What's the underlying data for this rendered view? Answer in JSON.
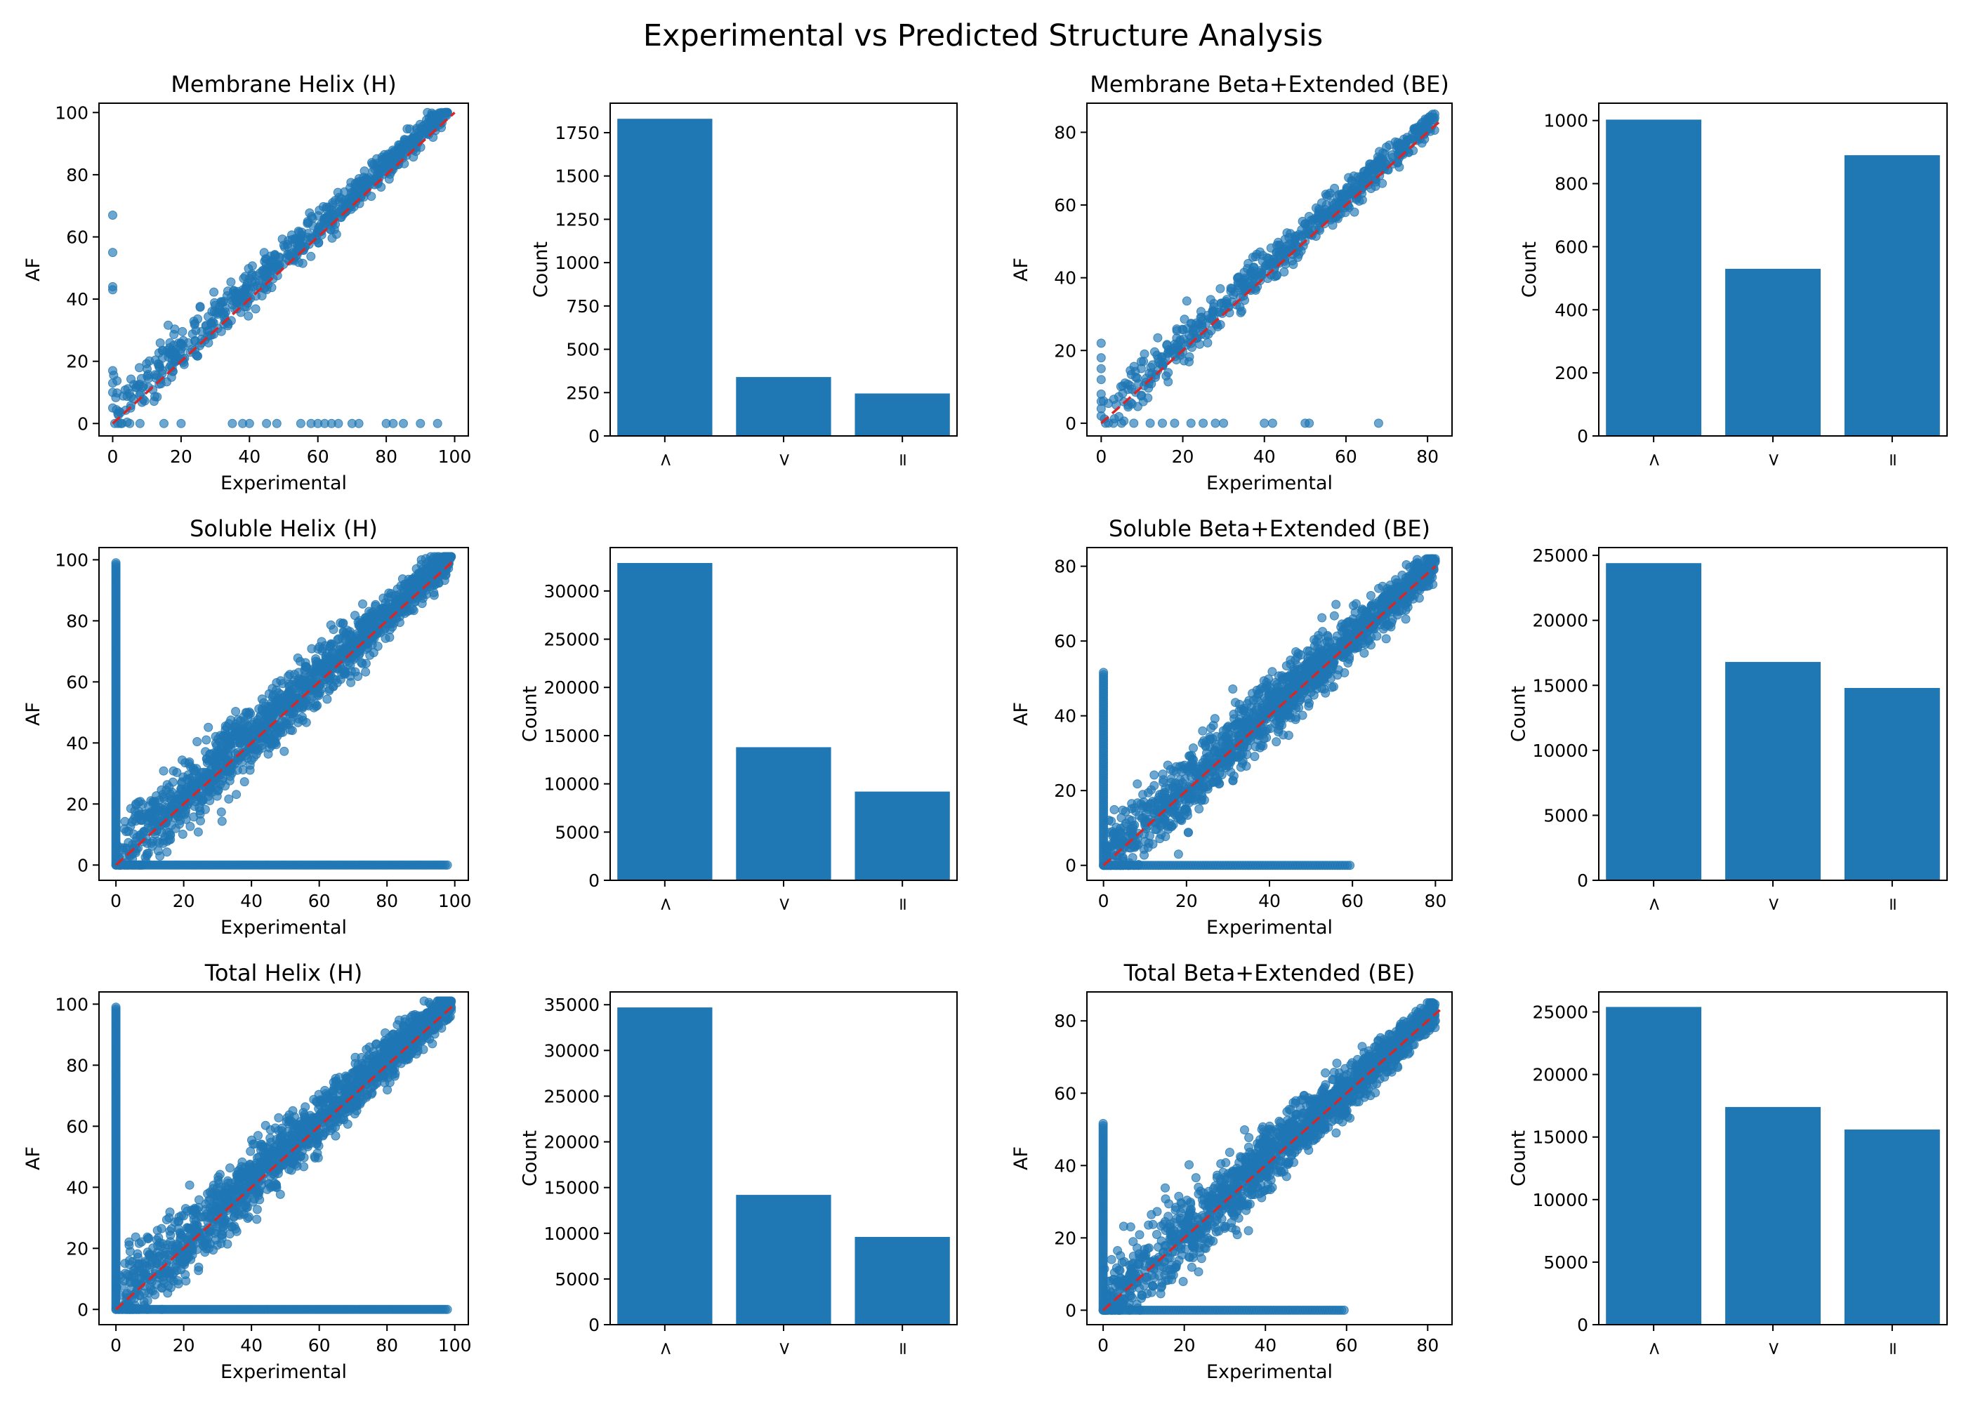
{
  "figure": {
    "title": "Experimental vs Predicted Structure Analysis"
  },
  "colors": {
    "points": "#1f77b4",
    "bars": "#1f77b4",
    "diagonal": "#d62728",
    "axes": "#000000"
  },
  "chart_data": [
    {
      "id": "membrane-helix-scatter",
      "type": "scatter",
      "title": "Membrane Helix (H)",
      "xlabel": "Experimental",
      "ylabel": "AF",
      "xlim": [
        -4,
        104
      ],
      "ylim": [
        -4,
        103
      ],
      "xticks": [
        0,
        20,
        40,
        60,
        80,
        100
      ],
      "yticks": [
        0,
        20,
        40,
        60,
        80,
        100
      ],
      "diagonal": [
        0,
        100
      ],
      "distribution": {
        "xmax": 98,
        "spread": 4.5,
        "bias": 3,
        "n": 700,
        "zero_x": [
          5,
          8,
          15,
          20,
          35,
          38,
          40,
          45,
          48,
          55,
          58,
          60,
          62,
          64,
          66,
          70,
          72,
          80,
          82,
          85,
          90,
          95
        ],
        "zero_y": [
          5,
          10,
          13,
          17,
          43,
          44,
          55,
          67
        ]
      }
    },
    {
      "id": "membrane-helix-bar",
      "type": "bar",
      "categories": [
        ">",
        "<",
        "="
      ],
      "values": [
        1830,
        340,
        245
      ],
      "ylabel": "Count",
      "ylim": [
        0,
        1920
      ],
      "yticks": [
        0,
        250,
        500,
        750,
        1000,
        1250,
        1500,
        1750
      ]
    },
    {
      "id": "membrane-be-scatter",
      "type": "scatter",
      "title": "Membrane Beta+Extended (BE)",
      "xlabel": "Experimental",
      "ylabel": "AF",
      "xlim": [
        -3.5,
        86
      ],
      "ylim": [
        -3.5,
        88
      ],
      "xticks": [
        0,
        20,
        40,
        60,
        80
      ],
      "yticks": [
        0,
        20,
        40,
        60,
        80
      ],
      "diagonal": [
        0,
        83
      ],
      "distribution": {
        "xmax": 82,
        "spread": 4,
        "bias": 2,
        "n": 600,
        "zero_x": [
          3,
          5,
          8,
          12,
          15,
          18,
          22,
          25,
          28,
          30,
          40,
          42,
          50,
          51,
          68
        ],
        "zero_y": [
          2,
          4,
          6,
          8,
          12,
          15,
          18,
          22
        ]
      }
    },
    {
      "id": "membrane-be-bar",
      "type": "bar",
      "categories": [
        ">",
        "<",
        "="
      ],
      "values": [
        1003,
        530,
        890
      ],
      "ylabel": "Count",
      "ylim": [
        0,
        1055
      ],
      "yticks": [
        0,
        200,
        400,
        600,
        800,
        1000
      ]
    },
    {
      "id": "soluble-helix-scatter",
      "type": "scatter",
      "title": "Soluble Helix (H)",
      "xlabel": "Experimental",
      "ylabel": "AF",
      "xlim": [
        -5,
        104
      ],
      "ylim": [
        -5,
        104
      ],
      "xticks": [
        0,
        20,
        40,
        60,
        80,
        100
      ],
      "yticks": [
        0,
        20,
        40,
        60,
        80,
        100
      ],
      "diagonal": [
        0,
        100
      ],
      "distribution": {
        "xmax": 99,
        "spread": 7,
        "bias": 2,
        "n": 1500,
        "zero_x": "dense:0-98",
        "zero_y": "dense:0-99"
      }
    },
    {
      "id": "soluble-helix-bar",
      "type": "bar",
      "categories": [
        ">",
        "<",
        "="
      ],
      "values": [
        32900,
        13800,
        9200
      ],
      "ylabel": "Count",
      "ylim": [
        0,
        34500
      ],
      "yticks": [
        0,
        5000,
        10000,
        15000,
        20000,
        25000,
        30000
      ]
    },
    {
      "id": "soluble-be-scatter",
      "type": "scatter",
      "title": "Soluble Beta+Extended (BE)",
      "xlabel": "Experimental",
      "ylabel": "AF",
      "xlim": [
        -4,
        84
      ],
      "ylim": [
        -4,
        85
      ],
      "xticks": [
        0,
        20,
        40,
        60,
        80
      ],
      "yticks": [
        0,
        20,
        40,
        60,
        80
      ],
      "diagonal": [
        0,
        80
      ],
      "distribution": {
        "xmax": 80,
        "spread": 6,
        "bias": 1,
        "n": 1500,
        "zero_x": "dense:0-60",
        "zero_y": "dense:0-52"
      }
    },
    {
      "id": "soluble-be-bar",
      "type": "bar",
      "categories": [
        ">",
        "<",
        "="
      ],
      "values": [
        24400,
        16800,
        14800
      ],
      "ylabel": "Count",
      "ylim": [
        0,
        25600
      ],
      "yticks": [
        0,
        5000,
        10000,
        15000,
        20000,
        25000
      ]
    },
    {
      "id": "total-helix-scatter",
      "type": "scatter",
      "title": "Total Helix (H)",
      "xlabel": "Experimental",
      "ylabel": "AF",
      "xlim": [
        -5,
        104
      ],
      "ylim": [
        -5,
        104
      ],
      "xticks": [
        0,
        20,
        40,
        60,
        80,
        100
      ],
      "yticks": [
        0,
        20,
        40,
        60,
        80,
        100
      ],
      "diagonal": [
        0,
        100
      ],
      "distribution": {
        "xmax": 99,
        "spread": 7,
        "bias": 2,
        "n": 1600,
        "zero_x": "dense:0-98",
        "zero_y": "dense:0-99"
      }
    },
    {
      "id": "total-helix-bar",
      "type": "bar",
      "categories": [
        ">",
        "<",
        "="
      ],
      "values": [
        34700,
        14200,
        9600
      ],
      "ylabel": "Count",
      "ylim": [
        0,
        36400
      ],
      "yticks": [
        0,
        5000,
        10000,
        15000,
        20000,
        25000,
        30000,
        35000
      ]
    },
    {
      "id": "total-be-scatter",
      "type": "scatter",
      "title": "Total Beta+Extended (BE)",
      "xlabel": "Experimental",
      "ylabel": "AF",
      "xlim": [
        -4,
        86
      ],
      "ylim": [
        -4,
        88
      ],
      "xticks": [
        0,
        20,
        40,
        60,
        80
      ],
      "yticks": [
        0,
        20,
        40,
        60,
        80
      ],
      "diagonal": [
        0,
        83
      ],
      "distribution": {
        "xmax": 82,
        "spread": 6,
        "bias": 1,
        "n": 1600,
        "zero_x": "dense:0-60",
        "zero_y": "dense:0-52"
      }
    },
    {
      "id": "total-be-bar",
      "type": "bar",
      "categories": [
        ">",
        "<",
        "="
      ],
      "values": [
        25400,
        17400,
        15600
      ],
      "ylabel": "Count",
      "ylim": [
        0,
        26600
      ],
      "yticks": [
        0,
        5000,
        10000,
        15000,
        20000,
        25000
      ]
    }
  ]
}
